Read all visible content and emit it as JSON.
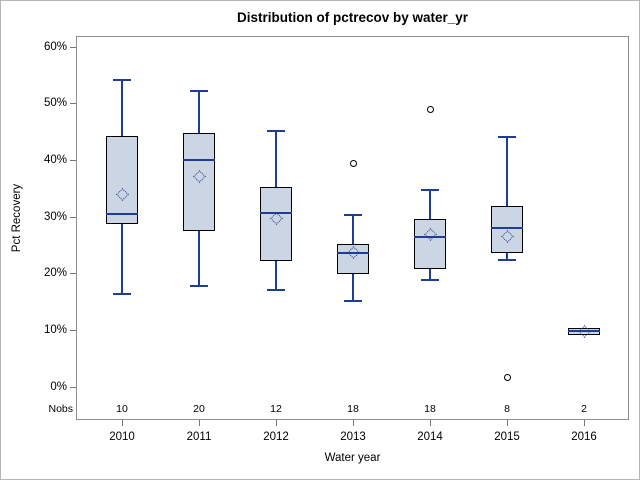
{
  "title": "Distribution of pctrecov by water_yr",
  "y_axis": {
    "label": "Pct Recovery",
    "tick_labels": [
      "0%",
      "10%",
      "20%",
      "30%",
      "40%",
      "50%",
      "60%"
    ],
    "tick_values": [
      0,
      10,
      20,
      30,
      40,
      50,
      60
    ]
  },
  "x_axis": {
    "label": "Water year",
    "tick_labels": [
      "2010",
      "2011",
      "2012",
      "2013",
      "2014",
      "2015",
      "2016"
    ]
  },
  "nobs_header": "Nobs",
  "colors": {
    "box_fill": "#ccd5e3",
    "box_border": "#000000",
    "blue_line": "#1e3e94",
    "frame_gray": "#8f8f8f",
    "tick_gray": "#777777",
    "outlier_stroke": "#000000",
    "text": "#000000",
    "outer_border": "#b5b5b5"
  },
  "chart_data": {
    "type": "boxplot",
    "title": "Distribution of pctrecov by water_yr",
    "xlabel": "Water year",
    "ylabel": "Pct Recovery",
    "ylim": [
      0,
      62
    ],
    "grid": false,
    "legend": "none",
    "categories": [
      "2010",
      "2011",
      "2012",
      "2013",
      "2014",
      "2015",
      "2016"
    ],
    "nobs": [
      10,
      20,
      12,
      18,
      18,
      8,
      2
    ],
    "series": [
      {
        "category": "2010",
        "n": 10,
        "whisker_low": 16.4,
        "q1": 28.8,
        "median": 30.5,
        "q3": 44.3,
        "whisker_high": 54.1,
        "mean": 34.0,
        "outliers": []
      },
      {
        "category": "2011",
        "n": 20,
        "whisker_low": 17.8,
        "q1": 27.5,
        "median": 40.0,
        "q3": 44.9,
        "whisker_high": 52.2,
        "mean": 37.1,
        "outliers": []
      },
      {
        "category": "2012",
        "n": 12,
        "whisker_low": 17.2,
        "q1": 22.2,
        "median": 30.7,
        "q3": 35.3,
        "whisker_high": 45.2,
        "mean": 29.8,
        "outliers": []
      },
      {
        "category": "2013",
        "n": 18,
        "whisker_low": 15.2,
        "q1": 20.0,
        "median": 23.7,
        "q3": 25.3,
        "whisker_high": 30.4,
        "mean": 23.8,
        "outliers": [
          39.5
        ]
      },
      {
        "category": "2014",
        "n": 18,
        "whisker_low": 18.8,
        "q1": 20.8,
        "median": 26.5,
        "q3": 29.7,
        "whisker_high": 34.7,
        "mean": 27.0,
        "outliers": [
          49.0
        ]
      },
      {
        "category": "2015",
        "n": 8,
        "whisker_low": 22.5,
        "q1": 23.6,
        "median": 28.0,
        "q3": 31.9,
        "whisker_high": 44.1,
        "mean": 26.5,
        "outliers": [
          1.6
        ]
      },
      {
        "category": "2016",
        "n": 2,
        "whisker_low": 9.1,
        "q1": 9.1,
        "median": 9.8,
        "q3": 10.5,
        "whisker_high": 10.5,
        "mean": 9.8,
        "outliers": []
      }
    ]
  }
}
